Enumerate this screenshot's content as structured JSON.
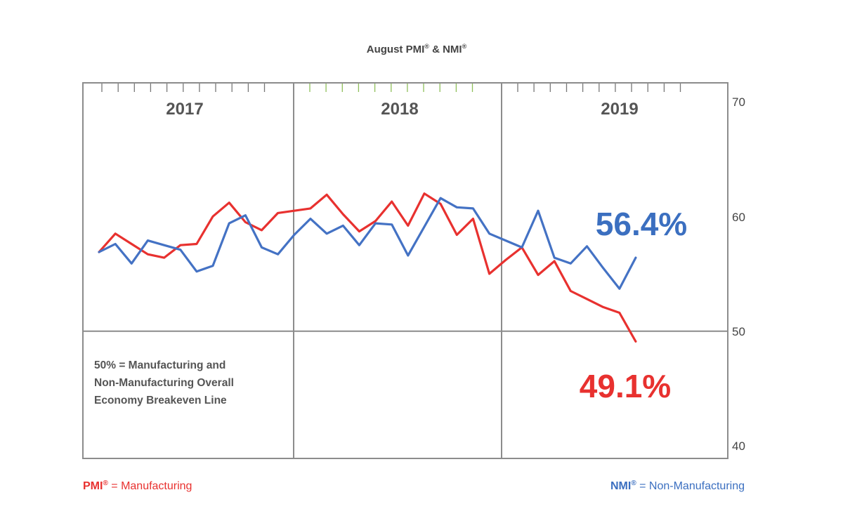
{
  "chart_data": {
    "type": "line",
    "title": "August PMI® & NMI®",
    "title_parts": {
      "a": "August PMI",
      "b": " & NMI"
    },
    "year_labels": [
      "2017",
      "2018",
      "2019"
    ],
    "ylim": [
      40,
      70
    ],
    "yticks": [
      "70",
      "60",
      "50",
      "40"
    ],
    "ytick_values": [
      70,
      60,
      50,
      40
    ],
    "grid": "year dividers and 50% breakeven line",
    "breakeven": 50,
    "annotation": [
      "50% = Manufacturing and",
      "Non-Manufacturing Overall",
      "Economy Breakeven Line"
    ],
    "callouts": {
      "nmi": "56.4%",
      "pmi": "49.1%"
    },
    "series": [
      {
        "name": "PMI",
        "color": "#e8312f",
        "values": [
          56.9,
          58.5,
          57.6,
          56.7,
          56.4,
          57.5,
          57.6,
          60.0,
          61.2,
          59.5,
          58.8,
          60.3,
          60.5,
          60.7,
          61.9,
          60.2,
          58.7,
          59.6,
          61.3,
          59.2,
          62.0,
          61.1,
          58.4,
          59.8,
          55.0,
          56.2,
          57.3,
          54.9,
          56.1,
          53.5,
          52.8,
          52.1,
          51.6,
          49.1
        ],
        "legend_name": "PMI",
        "legend_desc": " = Manufacturing"
      },
      {
        "name": "NMI",
        "color": "#4472c4",
        "values": [
          56.9,
          57.6,
          55.9,
          57.9,
          57.5,
          57.1,
          55.2,
          55.7,
          59.4,
          60.1,
          57.3,
          56.7,
          58.4,
          59.8,
          58.5,
          59.2,
          57.5,
          59.4,
          59.3,
          56.6,
          59.1,
          61.6,
          60.8,
          60.7,
          58.5,
          57.9,
          57.3,
          60.5,
          56.4,
          55.9,
          57.4,
          55.5,
          53.7,
          56.4
        ],
        "legend_name": "NMI",
        "legend_desc": " = Non-Manufacturing"
      }
    ]
  },
  "colors": {
    "frame": "#8c8c8c",
    "tick": "#777777",
    "tick_highlight": "#8fbf5a",
    "year_text": "#555555"
  }
}
